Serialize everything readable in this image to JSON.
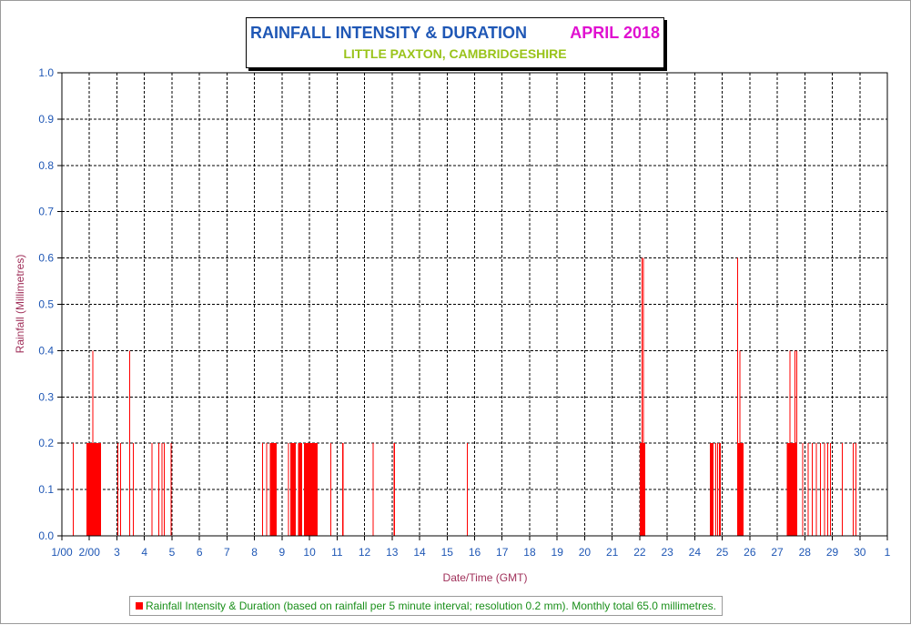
{
  "header": {
    "title": "RAINFALL INTENSITY & DURATION",
    "month": "APRIL 2018",
    "subtitle": "LITTLE PAXTON, CAMBRIDGESHIRE"
  },
  "legend": {
    "text": "Rainfall Intensity & Duration (based on rainfall per 5 minute interval; resolution 0.2 mm). Monthly total 65.0 millimetres."
  },
  "colors": {
    "bars": "#ff0000",
    "title": "#1f57b5",
    "month": "#e010d0",
    "subtitle": "#99c319",
    "axis_text": "#1f57b5",
    "axis_label": "#a0305a",
    "legend_text": "#1a8f1a"
  },
  "chart_data": {
    "type": "bar",
    "title": "RAINFALL INTENSITY & DURATION",
    "subtitle": "LITTLE PAXTON, CAMBRIDGESHIRE",
    "xlabel": "Date/Time (GMT)",
    "ylabel": "Rainfall (Millimetres)",
    "xlim": [
      1,
      31
    ],
    "ylim": [
      0,
      1
    ],
    "grid": true,
    "x_ticks": [
      {
        "v": 1,
        "label": "1/00"
      },
      {
        "v": 2,
        "label": "2/00"
      },
      {
        "v": 3,
        "label": "3"
      },
      {
        "v": 4,
        "label": "4"
      },
      {
        "v": 5,
        "label": "5"
      },
      {
        "v": 6,
        "label": "6"
      },
      {
        "v": 7,
        "label": "7"
      },
      {
        "v": 8,
        "label": "8"
      },
      {
        "v": 9,
        "label": "9"
      },
      {
        "v": 10,
        "label": "10"
      },
      {
        "v": 11,
        "label": "11"
      },
      {
        "v": 12,
        "label": "12"
      },
      {
        "v": 13,
        "label": "13"
      },
      {
        "v": 14,
        "label": "14"
      },
      {
        "v": 15,
        "label": "15"
      },
      {
        "v": 16,
        "label": "16"
      },
      {
        "v": 17,
        "label": "17"
      },
      {
        "v": 18,
        "label": "18"
      },
      {
        "v": 19,
        "label": "19"
      },
      {
        "v": 20,
        "label": "20"
      },
      {
        "v": 21,
        "label": "21"
      },
      {
        "v": 22,
        "label": "22"
      },
      {
        "v": 23,
        "label": "23"
      },
      {
        "v": 24,
        "label": "24"
      },
      {
        "v": 25,
        "label": "25"
      },
      {
        "v": 26,
        "label": "26"
      },
      {
        "v": 27,
        "label": "27"
      },
      {
        "v": 28,
        "label": "28"
      },
      {
        "v": 29,
        "label": "29"
      },
      {
        "v": 30,
        "label": "30"
      },
      {
        "v": 31,
        "label": "1"
      }
    ],
    "y_ticks": [
      {
        "v": 0.0,
        "label": "0.0"
      },
      {
        "v": 0.1,
        "label": "0.1"
      },
      {
        "v": 0.2,
        "label": "0.2"
      },
      {
        "v": 0.3,
        "label": "0.3"
      },
      {
        "v": 0.4,
        "label": "0.4"
      },
      {
        "v": 0.5,
        "label": "0.5"
      },
      {
        "v": 0.6,
        "label": "0.6"
      },
      {
        "v": 0.7,
        "label": "0.7"
      },
      {
        "v": 0.8,
        "label": "0.8"
      },
      {
        "v": 0.9,
        "label": "0.9"
      },
      {
        "v": 1.0,
        "label": "1.0"
      }
    ],
    "series": [
      {
        "legend": "Rainfall Intensity & Duration",
        "bars": [
          {
            "x": 1.4,
            "x2": 1.42,
            "y": 0.2
          },
          {
            "x": 1.9,
            "x2": 2.43,
            "y": 0.2
          },
          {
            "x": 2.1,
            "x2": 2.14,
            "y": 0.4
          },
          {
            "x": 3.02,
            "x2": 3.05,
            "y": 0.2
          },
          {
            "x": 3.12,
            "x2": 3.14,
            "y": 0.2
          },
          {
            "x": 3.45,
            "x2": 3.47,
            "y": 0.4
          },
          {
            "x": 3.58,
            "x2": 3.6,
            "y": 0.2
          },
          {
            "x": 4.25,
            "x2": 4.27,
            "y": 0.2
          },
          {
            "x": 4.5,
            "x2": 4.52,
            "y": 0.2
          },
          {
            "x": 4.62,
            "x2": 4.64,
            "y": 0.2
          },
          {
            "x": 4.7,
            "x2": 4.72,
            "y": 0.2
          },
          {
            "x": 4.95,
            "x2": 4.98,
            "y": 0.2
          },
          {
            "x": 8.28,
            "x2": 8.3,
            "y": 0.2
          },
          {
            "x": 8.42,
            "x2": 8.44,
            "y": 0.2
          },
          {
            "x": 8.55,
            "x2": 8.8,
            "y": 0.2
          },
          {
            "x": 9.22,
            "x2": 9.24,
            "y": 0.2
          },
          {
            "x": 9.3,
            "x2": 9.5,
            "y": 0.2
          },
          {
            "x": 9.58,
            "x2": 9.74,
            "y": 0.2
          },
          {
            "x": 9.8,
            "x2": 10.3,
            "y": 0.2
          },
          {
            "x": 10.75,
            "x2": 10.77,
            "y": 0.2
          },
          {
            "x": 11.18,
            "x2": 11.24,
            "y": 0.2
          },
          {
            "x": 12.3,
            "x2": 12.32,
            "y": 0.2
          },
          {
            "x": 13.05,
            "x2": 13.1,
            "y": 0.2
          },
          {
            "x": 15.72,
            "x2": 15.74,
            "y": 0.2
          },
          {
            "x": 22.0,
            "x2": 22.2,
            "y": 0.2
          },
          {
            "x": 22.07,
            "x2": 22.09,
            "y": 0.6
          },
          {
            "x": 22.12,
            "x2": 22.14,
            "y": 0.6
          },
          {
            "x": 24.55,
            "x2": 24.68,
            "y": 0.2
          },
          {
            "x": 24.75,
            "x2": 24.77,
            "y": 0.2
          },
          {
            "x": 24.82,
            "x2": 24.84,
            "y": 0.2
          },
          {
            "x": 24.88,
            "x2": 24.95,
            "y": 0.2
          },
          {
            "x": 25.55,
            "x2": 25.58,
            "y": 0.6
          },
          {
            "x": 25.55,
            "x2": 25.78,
            "y": 0.2
          },
          {
            "x": 25.63,
            "x2": 25.65,
            "y": 0.4
          },
          {
            "x": 27.35,
            "x2": 27.72,
            "y": 0.2
          },
          {
            "x": 27.45,
            "x2": 27.47,
            "y": 0.4
          },
          {
            "x": 27.63,
            "x2": 27.65,
            "y": 0.4
          },
          {
            "x": 27.7,
            "x2": 27.72,
            "y": 0.4
          },
          {
            "x": 27.9,
            "x2": 27.92,
            "y": 0.2
          },
          {
            "x": 28.1,
            "x2": 28.12,
            "y": 0.2
          },
          {
            "x": 28.25,
            "x2": 28.27,
            "y": 0.2
          },
          {
            "x": 28.4,
            "x2": 28.42,
            "y": 0.2
          },
          {
            "x": 28.55,
            "x2": 28.57,
            "y": 0.2
          },
          {
            "x": 28.7,
            "x2": 28.72,
            "y": 0.2
          },
          {
            "x": 28.82,
            "x2": 28.84,
            "y": 0.2
          },
          {
            "x": 28.92,
            "x2": 28.94,
            "y": 0.2
          },
          {
            "x": 29.35,
            "x2": 29.37,
            "y": 0.2
          },
          {
            "x": 29.75,
            "x2": 29.77,
            "y": 0.2
          },
          {
            "x": 29.85,
            "x2": 29.87,
            "y": 0.2
          }
        ]
      }
    ]
  }
}
